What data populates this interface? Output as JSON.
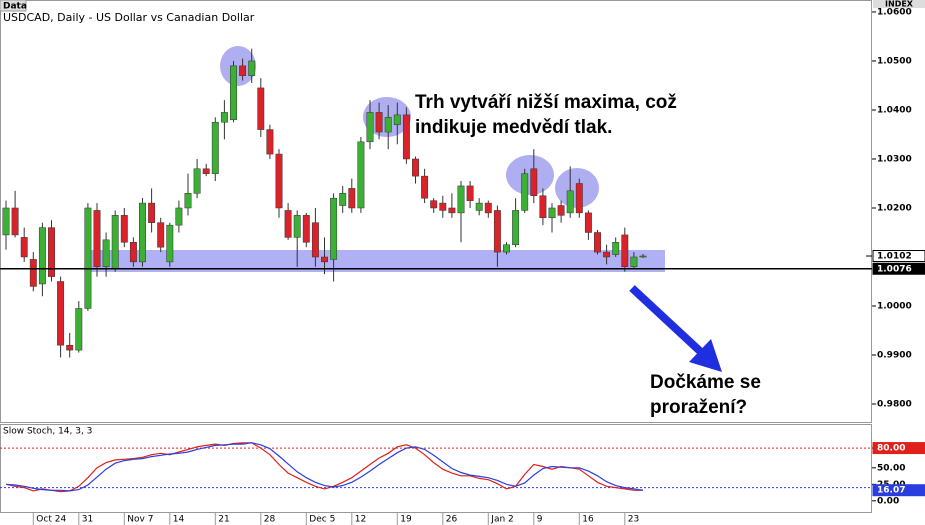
{
  "header": {
    "tag": "Data",
    "title": "USDCAD, Daily - US Dollar vs Canadian Dollar",
    "scale_tag": "INDEX"
  },
  "annotations": [
    "Trh vytváří nižší maxima, což",
    "indikuje medvědí tlak.",
    "Dočkáme se",
    "proražení?"
  ],
  "chart_data": [
    {
      "type": "candlestick",
      "up_color": "#3cb034",
      "down_color": "#d8232a",
      "open": [
        1.0145,
        1.02,
        1.014,
        1.0095,
        1.0045,
        1.016,
        1.005,
        0.992,
        0.991,
        0.9995,
        1.0195,
        1.008,
        1.0075,
        1.0185,
        1.013,
        1.009,
        1.021,
        1.017,
        1.009,
        1.0165,
        1.02,
        1.023,
        1.028,
        1.027,
        1.0375,
        1.038,
        1.049,
        1.047,
        1.0445,
        1.036,
        1.031,
        1.0195,
        1.014,
        1.0185,
        1.017,
        1.01,
        1.0095,
        1.0205,
        1.024,
        1.02,
        1.0335,
        1.0395,
        1.0355,
        1.037,
        1.039,
        1.03,
        1.0265,
        1.0215,
        1.021,
        1.02,
        1.019,
        1.0245,
        1.0195,
        1.021,
        1.0195,
        1.011,
        1.0125,
        1.0195,
        1.028,
        1.0225,
        1.018,
        1.0205,
        1.019,
        1.025,
        1.019,
        1.015,
        1.011,
        1.0105,
        1.0145,
        1.008,
        1.01
      ],
      "high": [
        1.0215,
        1.0235,
        1.016,
        1.011,
        1.017,
        1.0175,
        1.006,
        0.9945,
        1.001,
        1.021,
        1.021,
        1.015,
        1.0195,
        1.02,
        1.014,
        1.022,
        1.024,
        1.018,
        1.017,
        1.0215,
        1.027,
        1.03,
        1.029,
        1.0385,
        1.042,
        1.05,
        1.0505,
        1.0525,
        1.0465,
        1.037,
        1.032,
        1.021,
        1.0195,
        1.019,
        1.02,
        1.014,
        1.023,
        1.0245,
        1.026,
        1.0345,
        1.042,
        1.0415,
        1.041,
        1.0415,
        1.0405,
        1.0305,
        1.028,
        1.022,
        1.0225,
        1.023,
        1.0255,
        1.0255,
        1.022,
        1.0215,
        1.0205,
        1.013,
        1.022,
        1.028,
        1.032,
        1.024,
        1.021,
        1.0215,
        1.0285,
        1.026,
        1.0195,
        1.0155,
        1.0125,
        1.014,
        1.016,
        1.011,
        1.0106
      ],
      "low": [
        1.0115,
        1.014,
        1.009,
        1.003,
        1.002,
        1.005,
        0.9895,
        0.9895,
        0.9905,
        0.999,
        1.006,
        1.006,
        1.007,
        1.012,
        1.008,
        1.008,
        1.015,
        1.011,
        1.008,
        1.015,
        1.0185,
        1.022,
        1.0265,
        1.0255,
        1.034,
        1.0375,
        1.046,
        1.0455,
        1.0345,
        1.03,
        1.018,
        1.0135,
        1.008,
        1.012,
        1.008,
        1.0065,
        1.005,
        1.019,
        1.019,
        1.019,
        1.032,
        1.034,
        1.032,
        1.033,
        1.029,
        1.025,
        1.021,
        1.019,
        1.018,
        1.018,
        1.013,
        1.02,
        1.0185,
        1.018,
        1.008,
        1.0105,
        1.012,
        1.019,
        1.021,
        1.0165,
        1.015,
        1.017,
        1.018,
        1.018,
        1.0135,
        1.0105,
        1.0085,
        1.01,
        1.007,
        1.0075,
        1.0098
      ],
      "close": [
        1.02,
        1.0145,
        1.01,
        1.004,
        1.016,
        1.006,
        0.992,
        0.991,
        0.9995,
        1.02,
        1.008,
        1.0135,
        1.0185,
        1.013,
        1.009,
        1.021,
        1.017,
        1.012,
        1.0165,
        1.02,
        1.023,
        1.028,
        1.027,
        1.0375,
        1.0395,
        1.049,
        1.047,
        1.05,
        1.036,
        1.031,
        1.02,
        1.014,
        1.0185,
        1.013,
        1.01,
        1.009,
        1.022,
        1.023,
        1.02,
        1.0335,
        1.0395,
        1.0355,
        1.0385,
        1.039,
        1.03,
        1.0265,
        1.022,
        1.02,
        1.0195,
        1.019,
        1.0245,
        1.0215,
        1.021,
        1.019,
        1.011,
        1.0125,
        1.0195,
        1.027,
        1.0225,
        1.018,
        1.02,
        1.0185,
        1.0235,
        1.019,
        1.015,
        1.011,
        1.01,
        1.013,
        1.008,
        1.01,
        1.0102
      ],
      "ylim": [
        0.97633,
        1.0604
      ],
      "yticks": [
        {
          "value": 1.06,
          "label": "1.0600"
        },
        {
          "value": 1.05,
          "label": "1.0500"
        },
        {
          "value": 1.04,
          "label": "1.0400"
        },
        {
          "value": 1.03,
          "label": "1.0300"
        },
        {
          "value": 1.02,
          "label": "1.0200"
        },
        {
          "value": 1.0,
          "label": "1.0000"
        },
        {
          "value": 0.99,
          "label": "0.9900"
        },
        {
          "value": 0.98,
          "label": "0.9800"
        }
      ],
      "price_markers": [
        {
          "value": 1.0102,
          "label": "1.0102",
          "line": false
        },
        {
          "value": 1.0076,
          "label": "1.0076",
          "line": true
        }
      ]
    },
    {
      "type": "line",
      "title": "Slow Stoch, 14, 3, 3",
      "categories": [
        null,
        null,
        null,
        "Oct 24",
        null,
        null,
        null,
        null,
        "31",
        null,
        null,
        null,
        null,
        "Nov 7",
        null,
        null,
        null,
        null,
        "14",
        null,
        null,
        null,
        null,
        "21",
        null,
        null,
        null,
        null,
        "28",
        null,
        null,
        null,
        null,
        "Dec 5",
        null,
        null,
        null,
        null,
        "12",
        null,
        null,
        null,
        null,
        "19",
        null,
        null,
        null,
        null,
        "26",
        null,
        null,
        null,
        null,
        "Jan 2",
        null,
        null,
        null,
        null,
        "9",
        null,
        null,
        null,
        null,
        "16",
        null,
        null,
        null,
        null,
        "23",
        null,
        null
      ],
      "series": [
        {
          "color": "#e0201a",
          "show_last": false,
          "values": [
            25,
            22,
            20,
            15,
            18,
            16,
            14,
            15,
            22,
            35,
            50,
            58,
            62,
            63,
            64,
            66,
            70,
            72,
            70,
            74,
            78,
            82,
            84,
            86,
            84,
            87,
            88,
            88,
            80,
            70,
            55,
            42,
            35,
            28,
            22,
            18,
            22,
            28,
            35,
            45,
            55,
            65,
            72,
            82,
            85,
            80,
            70,
            58,
            48,
            42,
            38,
            38,
            34,
            32,
            26,
            18,
            22,
            40,
            55,
            52,
            48,
            52,
            50,
            48,
            38,
            28,
            22,
            20,
            18,
            16,
            16
          ]
        },
        {
          "color": "#2a3ee0",
          "show_last": true,
          "values": [
            25,
            24,
            22,
            19,
            17,
            16,
            16,
            15,
            17,
            24,
            36,
            48,
            57,
            61,
            63,
            64,
            67,
            69,
            71,
            72,
            74,
            78,
            81,
            84,
            85,
            86,
            86,
            88,
            85,
            79,
            68,
            56,
            44,
            35,
            28,
            23,
            21,
            23,
            28,
            36,
            45,
            55,
            64,
            73,
            80,
            82,
            78,
            69,
            59,
            49,
            43,
            39,
            37,
            35,
            31,
            25,
            22,
            27,
            39,
            49,
            52,
            51,
            50,
            50,
            45,
            38,
            29,
            23,
            20,
            18,
            16.07
          ]
        }
      ],
      "ylim": [
        -17,
        115
      ],
      "yticks": [
        {
          "value": 80,
          "label": "80.00"
        },
        {
          "value": 50,
          "label": "50.00"
        },
        {
          "value": 25,
          "label": "25.00"
        },
        {
          "value": 0,
          "label": "0.00"
        }
      ],
      "levels": [
        {
          "value": 80,
          "color": "#e0201a"
        },
        {
          "value": 20,
          "color": "#2a3ee0"
        }
      ]
    }
  ]
}
